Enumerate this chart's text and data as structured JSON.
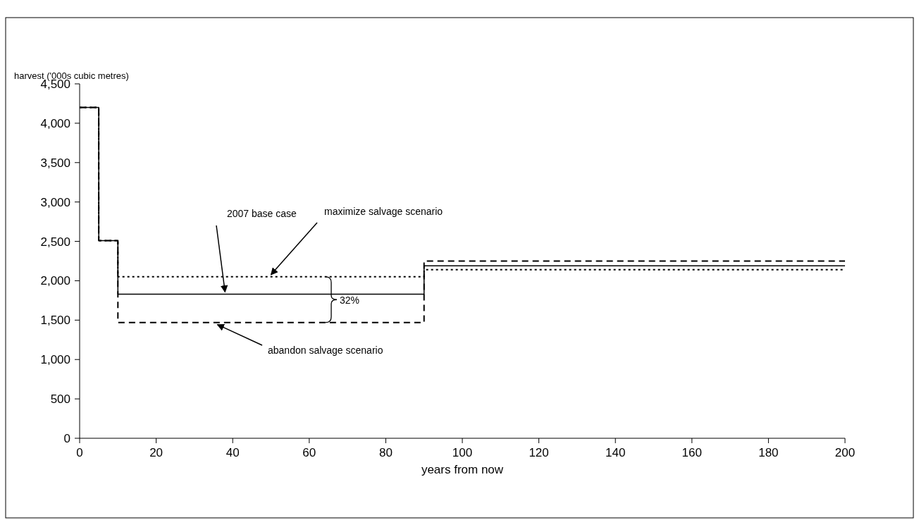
{
  "chart_data": {
    "type": "step",
    "ylabel": "harvest ('000s cubic metres)",
    "xlabel": "years from now",
    "x": [
      0,
      5,
      10,
      90,
      200
    ],
    "series": [
      {
        "color": "#000000",
        "line_style": "solid",
        "values": [
          4200,
          2510,
          1830,
          2190,
          2190
        ]
      },
      {
        "color": "#000000",
        "line_style": "dotted",
        "values": [
          4200,
          2510,
          2050,
          2140,
          2140
        ]
      },
      {
        "color": "#000000",
        "line_style": "dashed",
        "values": [
          4200,
          2510,
          1470,
          2250,
          2250
        ]
      }
    ],
    "annotations": [
      {
        "text": "2007 base case",
        "x": 38,
        "y": 1830
      },
      {
        "text": "maximize salvage scenario",
        "x": 50,
        "y": 2050
      },
      {
        "text": "abandon salvage scenario",
        "x": 36,
        "y": 1470
      },
      "32%"
    ],
    "xlim": [
      0,
      200
    ],
    "xticks": [
      0,
      20,
      40,
      60,
      80,
      100,
      120,
      140,
      160,
      180,
      200
    ],
    "ylim": [
      0,
      4500
    ],
    "yticks": [
      {
        "value": 0,
        "label": "0"
      },
      {
        "value": 500,
        "label": "500"
      },
      {
        "value": 1000,
        "label": "1,000"
      },
      {
        "value": 1500,
        "label": "1,500"
      },
      {
        "value": 2000,
        "label": "2,000"
      },
      {
        "value": 2500,
        "label": "2,500"
      },
      {
        "value": 3000,
        "label": "3,000"
      },
      {
        "value": 3500,
        "label": "3,500"
      },
      {
        "value": 4000,
        "label": "4,000"
      },
      {
        "value": 4500,
        "label": "4,500"
      }
    ],
    "grid": false
  }
}
